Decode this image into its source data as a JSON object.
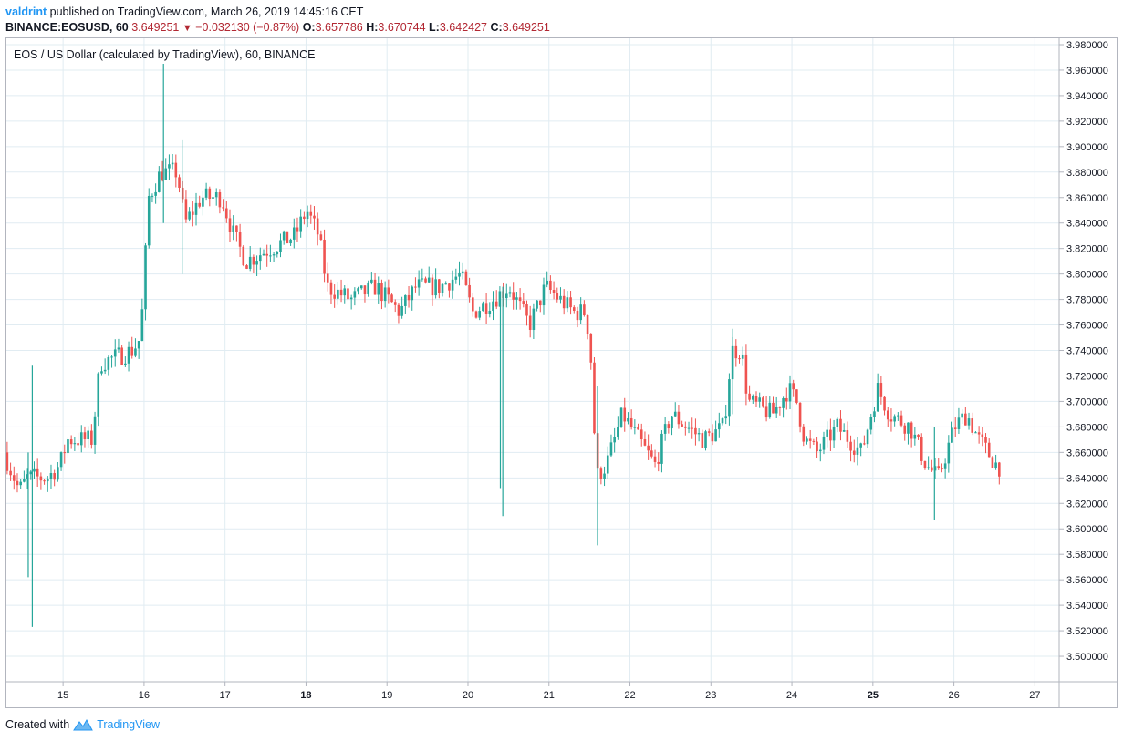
{
  "header": {
    "username": "valdrint",
    "published_text": "published on TradingView.com, March 26, 2019 14:45:16 CET"
  },
  "quote": {
    "symbol": "BINANCE:EOSUSD, 60",
    "last": "3.649251",
    "arrow": "▼",
    "change": "−0.032130 (−0.87%)",
    "o_label": "O:",
    "o_value": "3.657786",
    "h_label": "H:",
    "h_value": "3.670744",
    "l_label": "L:",
    "l_value": "3.642427",
    "c_label": "C:",
    "c_value": "3.649251"
  },
  "footer": {
    "created_with": "Created with",
    "brand": "TradingView"
  },
  "colors": {
    "up": "#26a69a",
    "down": "#ef5350",
    "grid": "#e1ecf2",
    "axis": "#b2b5be",
    "text": "#131722"
  },
  "chart_data": {
    "type": "candlestick",
    "title": "EOS / US Dollar (calculated by TradingView), 60, BINANCE",
    "ylim": [
      3.48,
      3.985
    ],
    "xlim": [
      14.3,
      27.3
    ],
    "y_ticks": [
      "3.500000",
      "3.520000",
      "3.540000",
      "3.560000",
      "3.580000",
      "3.600000",
      "3.620000",
      "3.640000",
      "3.660000",
      "3.680000",
      "3.700000",
      "3.720000",
      "3.740000",
      "3.760000",
      "3.780000",
      "3.800000",
      "3.820000",
      "3.840000",
      "3.860000",
      "3.880000",
      "3.900000",
      "3.920000",
      "3.940000",
      "3.960000",
      "3.980000"
    ],
    "x_ticks": [
      {
        "x": 15,
        "label": "15",
        "bold": false
      },
      {
        "x": 16,
        "label": "16",
        "bold": false
      },
      {
        "x": 17,
        "label": "17",
        "bold": false
      },
      {
        "x": 18,
        "label": "18",
        "bold": true
      },
      {
        "x": 19,
        "label": "19",
        "bold": false
      },
      {
        "x": 20,
        "label": "20",
        "bold": false
      },
      {
        "x": 21,
        "label": "21",
        "bold": false
      },
      {
        "x": 22,
        "label": "22",
        "bold": false
      },
      {
        "x": 23,
        "label": "23",
        "bold": false
      },
      {
        "x": 24,
        "label": "24",
        "bold": false
      },
      {
        "x": 25,
        "label": "25",
        "bold": true
      },
      {
        "x": 26,
        "label": "26",
        "bold": false
      },
      {
        "x": 27,
        "label": "27",
        "bold": false
      }
    ],
    "last_time": 26.58,
    "start_time": 14.31,
    "key_points": [
      [
        14.31,
        3.66
      ],
      [
        14.5,
        3.63
      ],
      [
        14.6,
        3.64
      ],
      [
        14.85,
        3.64
      ],
      [
        15.0,
        3.65
      ],
      [
        15.1,
        3.67
      ],
      [
        15.4,
        3.67
      ],
      [
        15.5,
        3.73
      ],
      [
        15.9,
        3.74
      ],
      [
        16.0,
        3.75
      ],
      [
        16.1,
        3.86
      ],
      [
        16.25,
        3.88
      ],
      [
        16.45,
        3.88
      ],
      [
        16.55,
        3.84
      ],
      [
        16.75,
        3.86
      ],
      [
        17.0,
        3.86
      ],
      [
        17.15,
        3.83
      ],
      [
        17.3,
        3.81
      ],
      [
        17.6,
        3.82
      ],
      [
        17.9,
        3.83
      ],
      [
        18.05,
        3.85
      ],
      [
        18.2,
        3.83
      ],
      [
        18.3,
        3.79
      ],
      [
        18.6,
        3.78
      ],
      [
        18.9,
        3.79
      ],
      [
        19.2,
        3.77
      ],
      [
        19.4,
        3.79
      ],
      [
        19.7,
        3.79
      ],
      [
        19.95,
        3.8
      ],
      [
        20.1,
        3.77
      ],
      [
        20.35,
        3.78
      ],
      [
        20.55,
        3.79
      ],
      [
        20.8,
        3.76
      ],
      [
        21.0,
        3.79
      ],
      [
        21.35,
        3.77
      ],
      [
        21.5,
        3.77
      ],
      [
        21.58,
        3.72
      ],
      [
        21.62,
        3.64
      ],
      [
        21.75,
        3.65
      ],
      [
        21.95,
        3.69
      ],
      [
        22.15,
        3.67
      ],
      [
        22.35,
        3.65
      ],
      [
        22.55,
        3.69
      ],
      [
        22.75,
        3.68
      ],
      [
        22.95,
        3.67
      ],
      [
        23.2,
        3.68
      ],
      [
        23.3,
        3.74
      ],
      [
        23.42,
        3.74
      ],
      [
        23.5,
        3.7
      ],
      [
        23.8,
        3.69
      ],
      [
        24.0,
        3.71
      ],
      [
        24.1,
        3.7
      ],
      [
        24.2,
        3.67
      ],
      [
        24.35,
        3.66
      ],
      [
        24.6,
        3.68
      ],
      [
        24.9,
        3.66
      ],
      [
        25.1,
        3.71
      ],
      [
        25.25,
        3.69
      ],
      [
        25.5,
        3.68
      ],
      [
        25.7,
        3.65
      ],
      [
        25.85,
        3.64
      ],
      [
        26.05,
        3.68
      ],
      [
        26.2,
        3.69
      ],
      [
        26.35,
        3.67
      ],
      [
        26.58,
        3.649
      ]
    ],
    "spikes": [
      {
        "t": 14.62,
        "high": 3.728,
        "low": 3.523
      },
      {
        "t": 14.57,
        "high": 3.66,
        "low": 3.562
      },
      {
        "t": 16.24,
        "high": 3.965,
        "low": 3.84
      },
      {
        "t": 16.47,
        "high": 3.905,
        "low": 3.8
      },
      {
        "t": 20.43,
        "high": 3.79,
        "low": 3.61
      },
      {
        "t": 20.4,
        "high": 3.775,
        "low": 3.632
      },
      {
        "t": 21.6,
        "high": 3.712,
        "low": 3.587
      },
      {
        "t": 25.76,
        "high": 3.68,
        "low": 3.607
      },
      {
        "t": 23.27,
        "high": 3.757,
        "low": 3.69
      }
    ]
  }
}
